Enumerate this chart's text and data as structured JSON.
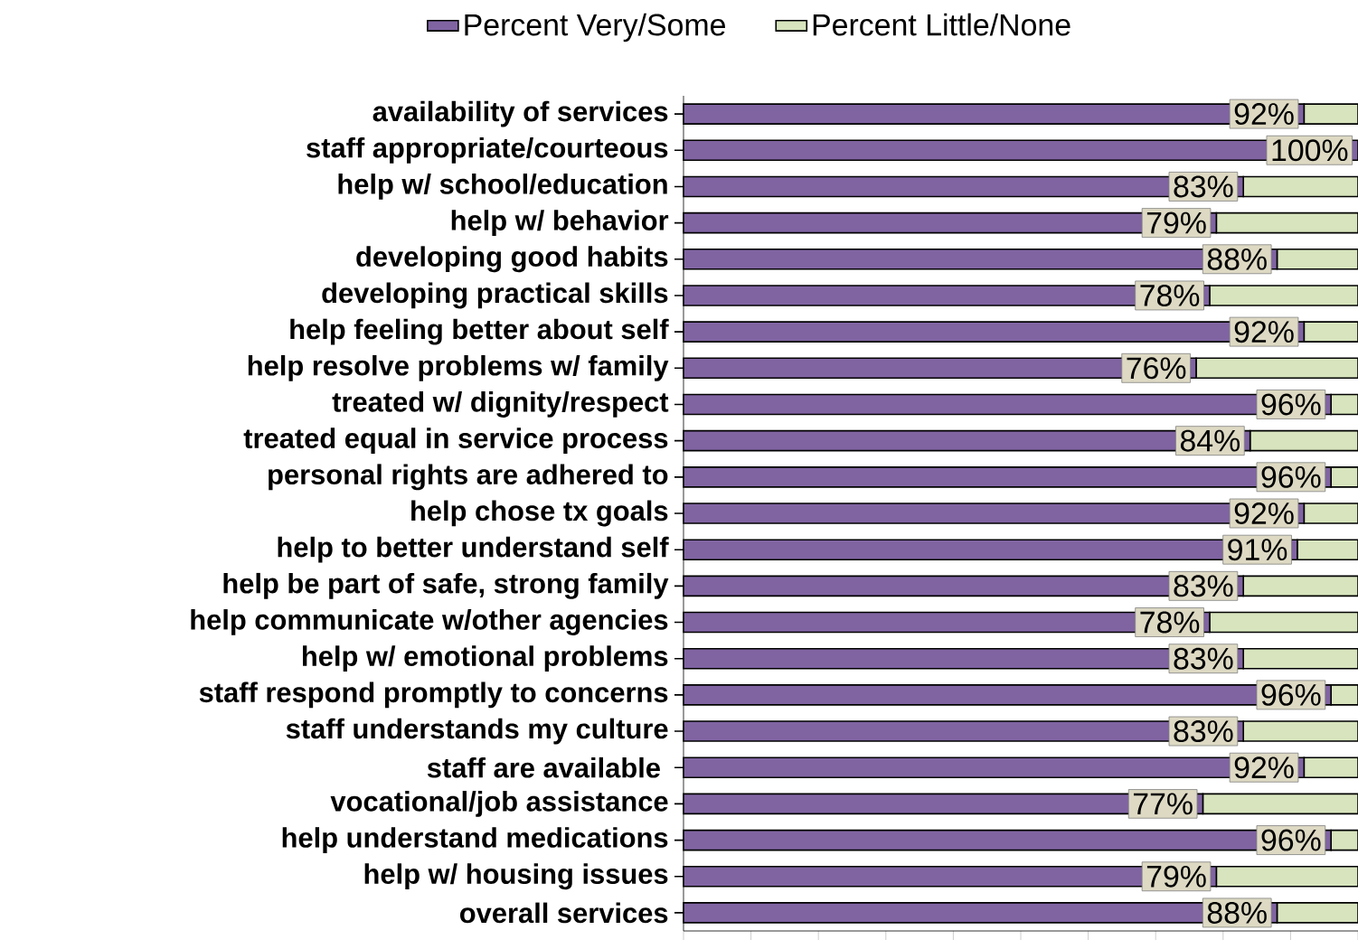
{
  "chart_data": {
    "type": "bar",
    "orientation": "horizontal",
    "stacked": true,
    "categories": [
      "availability of services",
      "staff appropriate/courteous",
      "help w/ school/education",
      "help w/ behavior",
      "developing good habits",
      "developing practical skills",
      "help feeling better about self",
      "help resolve problems w/ family",
      "treated w/ dignity/respect",
      "treated equal in service process",
      "personal rights are adhered to",
      "help chose tx goals",
      "help to better understand self",
      "help be part of safe, strong family",
      "help communicate w/other agencies",
      "help w/ emotional problems",
      "staff respond promptly to concerns",
      "staff understands my culture",
      "staff are available ",
      "vocational/job assistance",
      "help understand medications",
      "help w/ housing issues",
      "overall services"
    ],
    "series": [
      {
        "name": "Percent Very/Some",
        "color": "#8064a2",
        "values": [
          92,
          100,
          83,
          79,
          88,
          78,
          92,
          76,
          96,
          84,
          96,
          92,
          91,
          83,
          78,
          83,
          96,
          83,
          92,
          77,
          96,
          79,
          88
        ],
        "value_labels": [
          "92%",
          "100%",
          "83%",
          "79%",
          "88%",
          "78%",
          "92%",
          "76%",
          "96%",
          "84%",
          "96%",
          "92%",
          "91%",
          "83%",
          "78%",
          "83%",
          "96%",
          "83%",
          "92%",
          "77%",
          "96%",
          "79%",
          "88%"
        ]
      },
      {
        "name": "Percent Little/None",
        "color": "#d7e4bd",
        "values": [
          8,
          0,
          17,
          21,
          12,
          22,
          8,
          24,
          4,
          16,
          4,
          8,
          9,
          17,
          22,
          17,
          4,
          17,
          8,
          23,
          4,
          21,
          12
        ]
      }
    ],
    "legend": "top"
  }
}
